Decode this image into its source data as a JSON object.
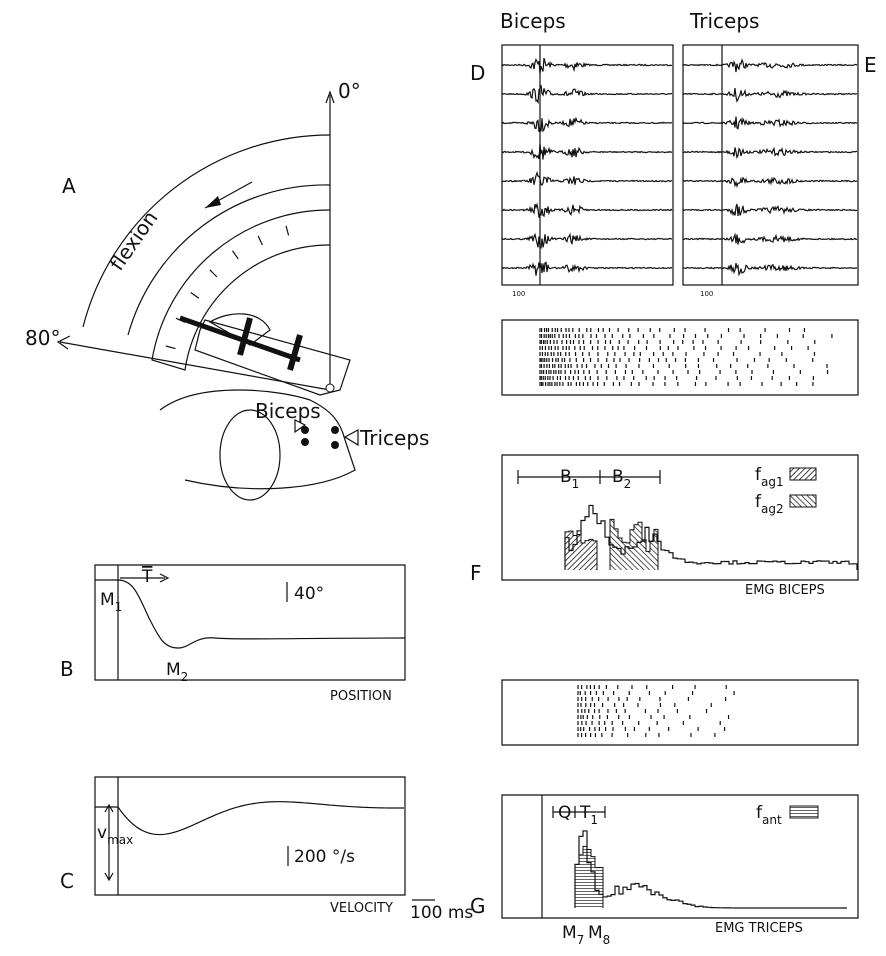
{
  "panel_a": {
    "letter": "A",
    "zero": "0°",
    "flexion": "flexion",
    "eighty": "80°",
    "biceps": "Biceps",
    "triceps": "Triceps"
  },
  "panel_b": {
    "letter": "B",
    "scale": "40°",
    "t": "T",
    "m1": {
      "base": "M",
      "sub": "1"
    },
    "m2": {
      "base": "M",
      "sub": "2"
    },
    "label": "POSITION"
  },
  "panel_c": {
    "letter": "C",
    "vmax": {
      "base": "v",
      "sub": "max"
    },
    "scale": "200 °/s",
    "label": "VELOCITY",
    "time": "100 ms"
  },
  "panel_d": {
    "letter": "D",
    "title": "Biceps",
    "tick": "100"
  },
  "panel_e": {
    "letter": "E",
    "title": "Triceps",
    "tick": "100"
  },
  "panel_f": {
    "letter": "F",
    "b1": {
      "base": "B",
      "sub": "1"
    },
    "b2": {
      "base": "B",
      "sub": "2"
    },
    "fag1": {
      "base": "f",
      "sub": "ag1"
    },
    "fag2": {
      "base": "f",
      "sub": "ag2"
    },
    "label": "EMG  BICEPS"
  },
  "panel_g": {
    "letter": "G",
    "q": "Q",
    "t1": {
      "base": "T",
      "sub": "1"
    },
    "fant": {
      "base": "f",
      "sub": "ant"
    },
    "m7": {
      "base": "M",
      "sub": "7"
    },
    "m8": {
      "base": "M",
      "sub": "8"
    },
    "label": "EMG  TRICEPS"
  }
}
